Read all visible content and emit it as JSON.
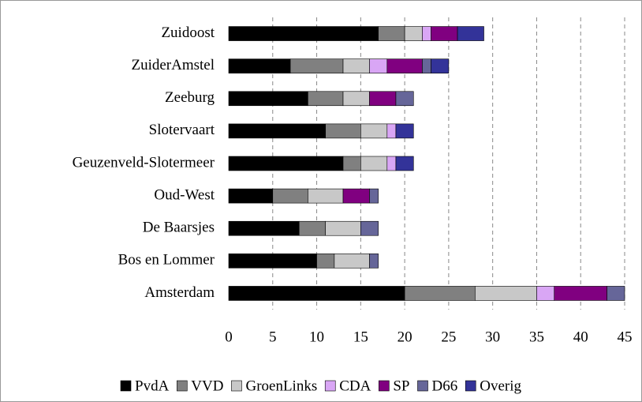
{
  "chart_data": {
    "type": "stacked-barh",
    "categories": [
      "Zuidoost",
      "ZuiderAmstel",
      "Zeeburg",
      "Slotervaart",
      "Geuzenveld-Slotermeer",
      "Oud-West",
      "De Baarsjes",
      "Bos en Lommer",
      "Amsterdam"
    ],
    "series": [
      {
        "name": "PvdA",
        "color": "#000000",
        "values": [
          17,
          7,
          9,
          11,
          13,
          5,
          8,
          10,
          20
        ]
      },
      {
        "name": "VVD",
        "color": "#808080",
        "values": [
          3,
          6,
          4,
          4,
          2,
          4,
          3,
          2,
          8
        ]
      },
      {
        "name": "GroenLinks",
        "color": "#c8c8c8",
        "values": [
          2,
          3,
          3,
          3,
          3,
          4,
          4,
          4,
          7
        ]
      },
      {
        "name": "CDA",
        "color": "#d9a6f5",
        "values": [
          1,
          2,
          0,
          1,
          1,
          0,
          0,
          0,
          2
        ]
      },
      {
        "name": "SP",
        "color": "#800080",
        "values": [
          3,
          4,
          3,
          0,
          0,
          3,
          0,
          0,
          6
        ]
      },
      {
        "name": "D66",
        "color": "#666699",
        "values": [
          0,
          1,
          2,
          0,
          0,
          1,
          2,
          1,
          2
        ]
      },
      {
        "name": "Overig",
        "color": "#333399",
        "values": [
          3,
          2,
          0,
          2,
          2,
          0,
          0,
          0,
          0
        ]
      }
    ],
    "xlim": [
      0,
      45
    ],
    "xticks": [
      0,
      5,
      10,
      15,
      20,
      25,
      30,
      35,
      40,
      45
    ],
    "grid": true,
    "legend": "bottom"
  }
}
